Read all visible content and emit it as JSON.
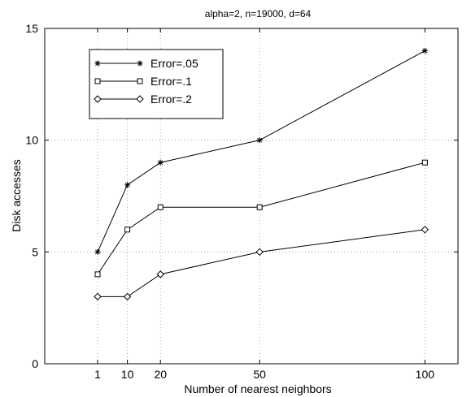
{
  "chart_data": {
    "type": "line",
    "title": "alpha=2, n=19000, d=64",
    "xlabel": "Number of nearest neighbors",
    "ylabel": "Disk accesses",
    "x": [
      1,
      10,
      20,
      50,
      100
    ],
    "xlim": [
      -15,
      110
    ],
    "ylim": [
      0,
      15
    ],
    "xticks": [
      "1",
      "10",
      "20",
      "50",
      "100"
    ],
    "yticks": [
      "0",
      "5",
      "10",
      "15"
    ],
    "grid": true,
    "legend_position": "top-left",
    "series": [
      {
        "name": "Error=.05",
        "marker": "asterisk",
        "values": [
          5,
          8,
          9,
          10,
          14
        ]
      },
      {
        "name": "Error=.1",
        "marker": "square",
        "values": [
          4,
          6,
          7,
          7,
          9
        ]
      },
      {
        "name": "Error=.2",
        "marker": "diamond",
        "values": [
          3,
          3,
          4,
          5,
          6
        ]
      }
    ]
  }
}
